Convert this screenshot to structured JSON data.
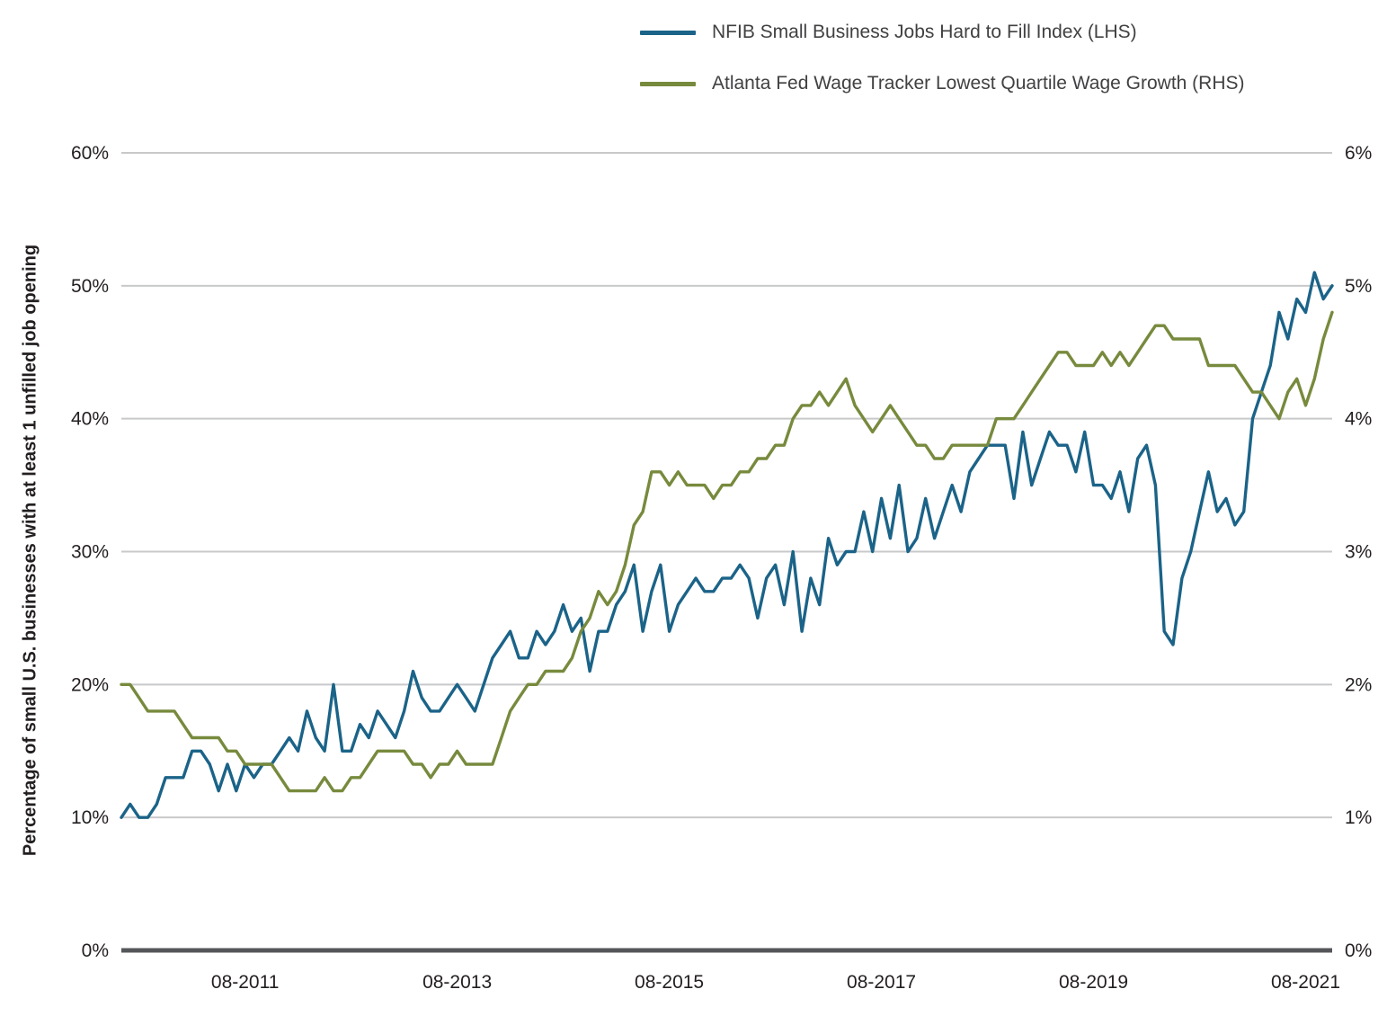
{
  "colors": {
    "grid": "#c8c9ca",
    "axis": "#55565a",
    "text": "#231f20",
    "legend_text": "#414042"
  },
  "chart_data": {
    "type": "line",
    "title": "",
    "ylabel_left": "Percentage of small U.S. businesses with at least 1 unfilled job opening",
    "grid": true,
    "legend_position": "top",
    "x_months": {
      "start": "2010-06",
      "end": "2021-11",
      "frequency": "monthly"
    },
    "x_tick_labels": [
      "08-2011",
      "08-2013",
      "08-2015",
      "08-2017",
      "08-2019",
      "08-2021"
    ],
    "x_tick_indices": [
      14,
      38,
      62,
      86,
      110,
      134
    ],
    "left_axis": {
      "min": 0,
      "max": 60,
      "tick_step": 10,
      "tick_labels": [
        "0%",
        "10%",
        "20%",
        "30%",
        "40%",
        "50%",
        "60%"
      ]
    },
    "right_axis": {
      "min": 0,
      "max": 6,
      "tick_step": 1,
      "tick_labels": [
        "0%",
        "1%",
        "2%",
        "3%",
        "4%",
        "5%",
        "6%"
      ]
    },
    "series": [
      {
        "name": "NFIB Small Business Jobs Hard to Fill Index (LHS)",
        "axis": "left",
        "color": "#1b6388",
        "values": [
          10,
          11,
          10,
          10,
          11,
          13,
          13,
          13,
          15,
          15,
          14,
          12,
          14,
          12,
          14,
          13,
          14,
          14,
          15,
          16,
          15,
          18,
          16,
          15,
          20,
          15,
          15,
          17,
          16,
          18,
          17,
          16,
          18,
          21,
          19,
          18,
          18,
          19,
          20,
          19,
          18,
          20,
          22,
          23,
          24,
          22,
          22,
          24,
          23,
          24,
          26,
          24,
          25,
          21,
          24,
          24,
          26,
          27,
          29,
          24,
          27,
          29,
          24,
          26,
          27,
          28,
          27,
          27,
          28,
          28,
          29,
          28,
          25,
          28,
          29,
          26,
          30,
          24,
          28,
          26,
          31,
          29,
          30,
          30,
          33,
          30,
          34,
          31,
          35,
          30,
          31,
          34,
          31,
          33,
          35,
          33,
          36,
          37,
          38,
          38,
          38,
          34,
          39,
          35,
          37,
          39,
          38,
          38,
          36,
          39,
          35,
          35,
          34,
          36,
          33,
          37,
          38,
          35,
          24,
          23,
          28,
          30,
          33,
          36,
          33,
          34,
          32,
          33,
          40,
          42,
          44,
          48,
          46,
          49,
          48,
          51,
          49,
          50
        ]
      },
      {
        "name": "Atlanta Fed Wage Tracker Lowest Quartile Wage Growth (RHS)",
        "axis": "right",
        "color": "#778a3d",
        "values": [
          2.0,
          2.0,
          1.9,
          1.8,
          1.8,
          1.8,
          1.8,
          1.7,
          1.6,
          1.6,
          1.6,
          1.6,
          1.5,
          1.5,
          1.4,
          1.4,
          1.4,
          1.4,
          1.3,
          1.2,
          1.2,
          1.2,
          1.2,
          1.3,
          1.2,
          1.2,
          1.3,
          1.3,
          1.4,
          1.5,
          1.5,
          1.5,
          1.5,
          1.4,
          1.4,
          1.3,
          1.4,
          1.4,
          1.5,
          1.4,
          1.4,
          1.4,
          1.4,
          1.6,
          1.8,
          1.9,
          2.0,
          2.0,
          2.1,
          2.1,
          2.1,
          2.2,
          2.4,
          2.5,
          2.7,
          2.6,
          2.7,
          2.9,
          3.2,
          3.3,
          3.6,
          3.6,
          3.5,
          3.6,
          3.5,
          3.5,
          3.5,
          3.4,
          3.5,
          3.5,
          3.6,
          3.6,
          3.7,
          3.7,
          3.8,
          3.8,
          4.0,
          4.1,
          4.1,
          4.2,
          4.1,
          4.2,
          4.3,
          4.1,
          4.0,
          3.9,
          4.0,
          4.1,
          4.0,
          3.9,
          3.8,
          3.8,
          3.7,
          3.7,
          3.8,
          3.8,
          3.8,
          3.8,
          3.8,
          4.0,
          4.0,
          4.0,
          4.1,
          4.2,
          4.3,
          4.4,
          4.5,
          4.5,
          4.4,
          4.4,
          4.4,
          4.5,
          4.4,
          4.5,
          4.4,
          4.5,
          4.6,
          4.7,
          4.7,
          4.6,
          4.6,
          4.6,
          4.6,
          4.4,
          4.4,
          4.4,
          4.4,
          4.3,
          4.2,
          4.2,
          4.1,
          4.0,
          4.2,
          4.3,
          4.1,
          4.3,
          4.6,
          4.8
        ]
      }
    ]
  }
}
